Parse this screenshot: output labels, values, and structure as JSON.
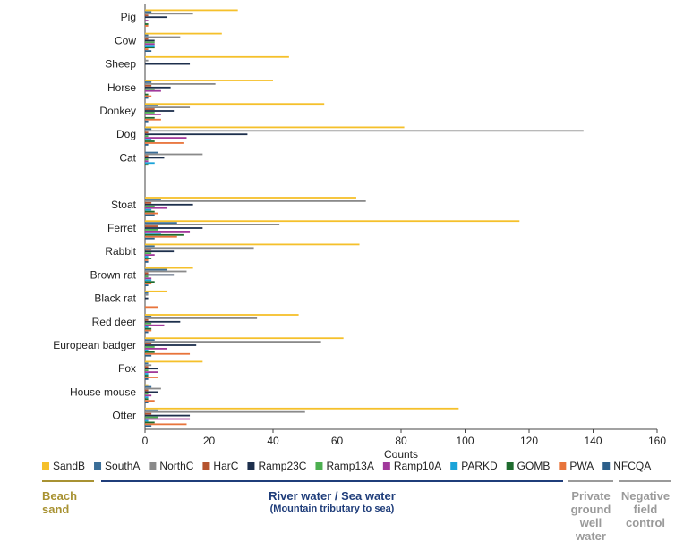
{
  "chart_data": {
    "type": "hbar",
    "xlabel": "Counts",
    "categories": [
      "Pig",
      "Cow",
      "Sheep",
      "Horse",
      "Donkey",
      "Dog",
      "Cat",
      null,
      "Stoat",
      "Ferret",
      "Rabbit",
      "Brown rat",
      "Black rat",
      "Red deer",
      "European badger",
      "Fox",
      "House mouse",
      "Otter"
    ],
    "xlim": [
      0,
      160
    ],
    "xticks": [
      0,
      20,
      40,
      60,
      80,
      100,
      120,
      140,
      160
    ],
    "series": [
      {
        "name": "SandB",
        "color": "#f5c02b",
        "values": [
          29,
          24,
          45,
          40,
          56,
          81,
          0,
          null,
          66,
          117,
          67,
          15,
          7,
          48,
          62,
          18,
          1,
          98
        ]
      },
      {
        "name": "SouthA",
        "color": "#3b6e98",
        "values": [
          2,
          1,
          0,
          2,
          4,
          2,
          4,
          null,
          5,
          10,
          3,
          7,
          1,
          2,
          3,
          1,
          2,
          4
        ]
      },
      {
        "name": "NorthC",
        "color": "#8a8a8a",
        "values": [
          15,
          11,
          1,
          22,
          14,
          137,
          18,
          null,
          69,
          42,
          34,
          13,
          1,
          35,
          55,
          2,
          5,
          50
        ]
      },
      {
        "name": "HarC",
        "color": "#b5532e",
        "values": [
          1,
          1,
          0,
          2,
          3,
          1,
          1,
          null,
          2,
          4,
          2,
          1,
          0,
          1,
          2,
          1,
          1,
          2
        ]
      },
      {
        "name": "Ramp23C",
        "color": "#1d2f4c",
        "values": [
          7,
          3,
          14,
          8,
          9,
          32,
          6,
          null,
          15,
          18,
          9,
          9,
          1,
          11,
          16,
          4,
          4,
          14
        ]
      },
      {
        "name": "Ramp13A",
        "color": "#4caf50",
        "values": [
          0,
          3,
          0,
          3,
          3,
          1,
          1,
          null,
          3,
          4,
          2,
          1,
          0,
          2,
          3,
          1,
          1,
          4
        ]
      },
      {
        "name": "Ramp10A",
        "color": "#a1399b",
        "values": [
          1,
          3,
          0,
          5,
          5,
          13,
          1,
          null,
          7,
          14,
          3,
          2,
          0,
          6,
          7,
          4,
          2,
          14
        ]
      },
      {
        "name": "PARKD",
        "color": "#1aa3d9",
        "values": [
          0,
          3,
          0,
          0,
          0,
          2,
          3,
          null,
          2,
          5,
          1,
          2,
          0,
          1,
          1,
          1,
          1,
          1
        ]
      },
      {
        "name": "GOMB",
        "color": "#1e6b2e",
        "values": [
          1,
          3,
          0,
          1,
          3,
          3,
          1,
          null,
          3,
          12,
          2,
          3,
          0,
          2,
          3,
          1,
          1,
          3
        ]
      },
      {
        "name": "PWA",
        "color": "#e8743b",
        "values": [
          1,
          1,
          0,
          2,
          5,
          12,
          0,
          null,
          4,
          10,
          1,
          2,
          4,
          2,
          14,
          4,
          3,
          13
        ]
      },
      {
        "name": "NFCQA",
        "color": "#2c5f8a",
        "values": [
          0,
          2,
          0,
          1,
          1,
          1,
          0,
          null,
          3,
          3,
          1,
          1,
          0,
          1,
          2,
          1,
          1,
          2
        ]
      }
    ],
    "groups": [
      {
        "label": "Beach sand",
        "color": "#a89232"
      },
      {
        "label": "River water / Sea water",
        "sublabel": "(Mountain tributary to sea)",
        "color": "#1f3d7a"
      },
      {
        "label": "Private ground well water",
        "color": "#9a9a9a"
      },
      {
        "label": "Negative field control",
        "color": "#9a9a9a"
      }
    ]
  }
}
